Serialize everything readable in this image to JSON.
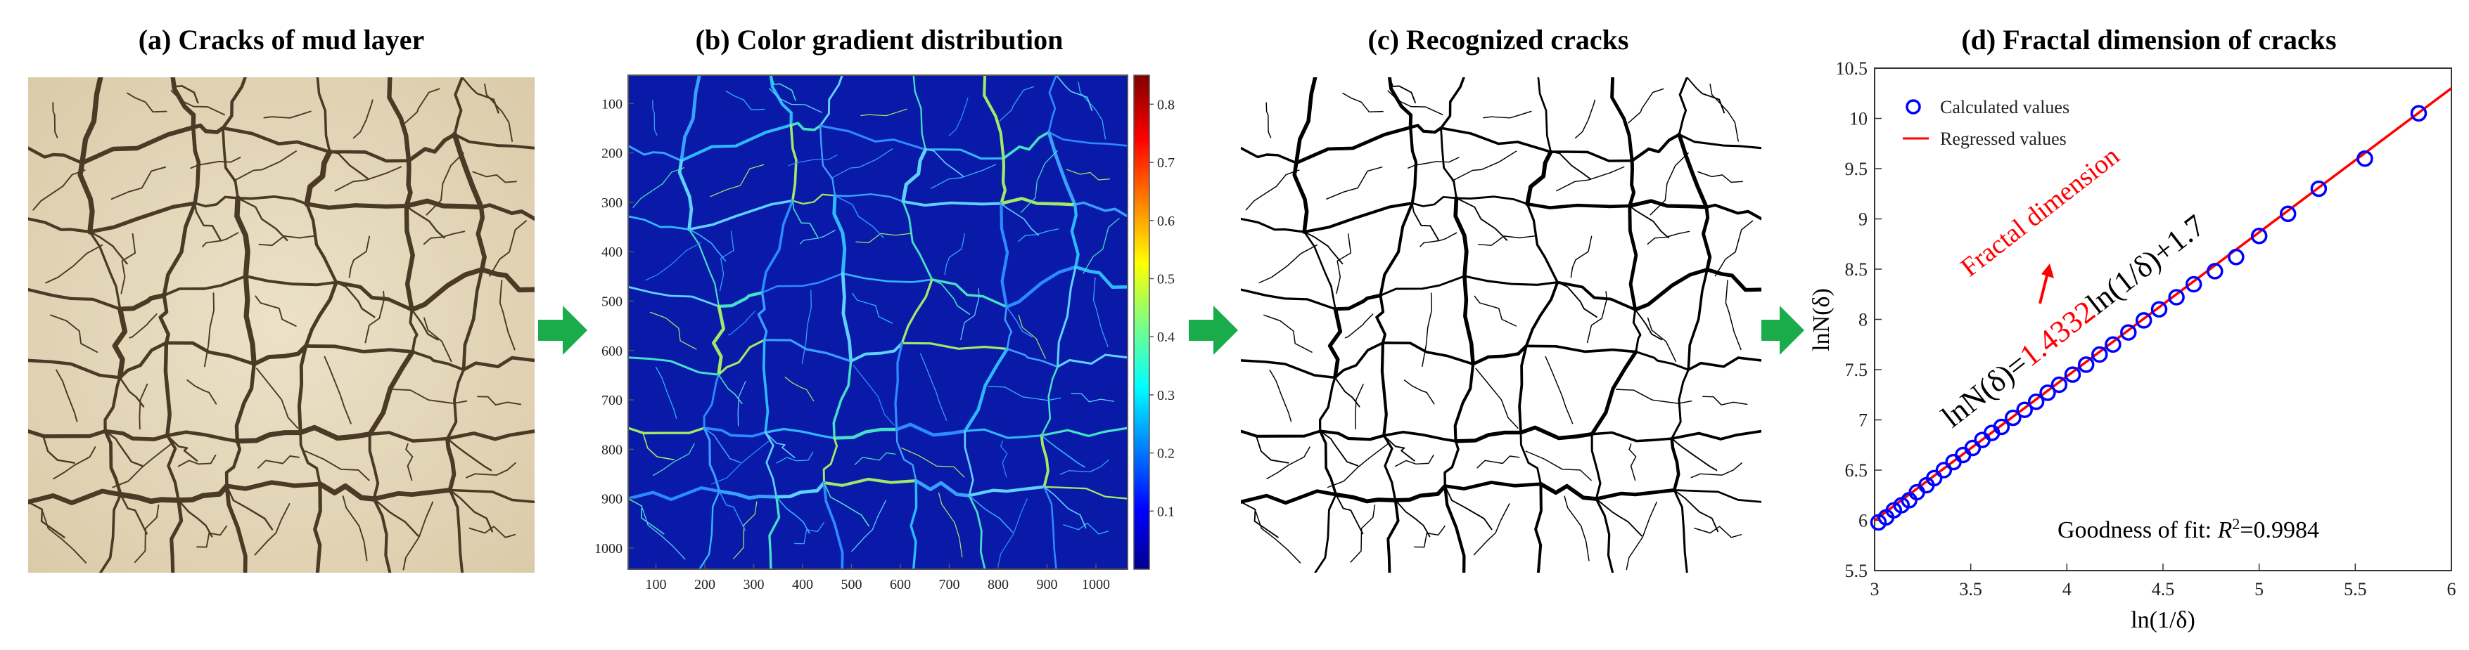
{
  "panels": [
    {
      "title": "(a) Cracks of mud layer"
    },
    {
      "title": "(b) Color gradient distribution"
    },
    {
      "title": "(c) Recognized cracks"
    },
    {
      "title": "(d) Fractal dimension of cracks"
    }
  ],
  "panel_b": {
    "y_ticks": [
      "100",
      "200",
      "300",
      "400",
      "500",
      "600",
      "700",
      "800",
      "900",
      "1000"
    ],
    "x_ticks": [
      "100",
      "200",
      "300",
      "400",
      "500",
      "600",
      "700",
      "800",
      "900",
      "1000"
    ],
    "colorbar_ticks": [
      "0.8",
      "0.7",
      "0.6",
      "0.5",
      "0.4",
      "0.3",
      "0.2",
      "0.1"
    ],
    "colormap": "jet"
  },
  "colors": {
    "arrow": "#1aab4a",
    "mud_background": "#e8dcc0",
    "crack": "#4a3a26",
    "fit_line": "#ff0000",
    "markers": "#0000ff",
    "annotation_red": "#ff0000"
  },
  "chart_data": {
    "type": "scatter",
    "title": "(d) Fractal dimension of cracks",
    "xlabel": "ln(1/δ)",
    "ylabel": "lnN(δ)",
    "xlim": [
      3,
      6
    ],
    "ylim": [
      5.5,
      10.5
    ],
    "x_ticks": [
      3,
      3.5,
      4,
      4.5,
      5,
      5.5,
      6
    ],
    "y_ticks": [
      5.5,
      6,
      6.5,
      7,
      7.5,
      8,
      8.5,
      9,
      9.5,
      10,
      10.5
    ],
    "x_tick_labels": [
      "3",
      "3.5",
      "4",
      "4.5",
      "5",
      "5.5",
      "6"
    ],
    "y_tick_labels": [
      "5.5",
      "6",
      "6.5",
      "7",
      "7.5",
      "8",
      "8.5",
      "9",
      "9.5",
      "10",
      "10.5"
    ],
    "legend_position": "top-left",
    "series": [
      {
        "name": "Calculated values",
        "kind": "markers",
        "x": [
          3.02,
          3.06,
          3.1,
          3.14,
          3.18,
          3.22,
          3.27,
          3.31,
          3.36,
          3.41,
          3.46,
          3.51,
          3.56,
          3.61,
          3.66,
          3.72,
          3.78,
          3.84,
          3.9,
          3.96,
          4.03,
          4.1,
          4.17,
          4.24,
          4.32,
          4.4,
          4.48,
          4.57,
          4.66,
          4.77,
          4.88,
          5.0,
          5.15,
          5.31,
          5.55,
          5.83
        ],
        "y": [
          5.98,
          6.03,
          6.1,
          6.15,
          6.2,
          6.28,
          6.35,
          6.42,
          6.5,
          6.58,
          6.65,
          6.72,
          6.8,
          6.87,
          6.93,
          7.02,
          7.1,
          7.18,
          7.27,
          7.35,
          7.45,
          7.55,
          7.65,
          7.75,
          7.87,
          7.99,
          8.1,
          8.22,
          8.35,
          8.48,
          8.62,
          8.83,
          9.05,
          9.3,
          9.6,
          10.05
        ]
      },
      {
        "name": "Regressed values",
        "kind": "line",
        "slope": 1.4332,
        "intercept": 1.7,
        "x": [
          3,
          6
        ],
        "y": [
          6.0,
          10.3
        ]
      }
    ],
    "annotations": {
      "fractal_label": "Fractal dimension",
      "equation_prefix": "lnN(δ)=",
      "equation_slope": "1.4332",
      "equation_suffix": "ln(1/δ)+1.7",
      "goodness_prefix": "Goodness of fit: ",
      "goodness_r": "R",
      "goodness_sup": "2",
      "goodness_value": "=0.9984"
    }
  }
}
